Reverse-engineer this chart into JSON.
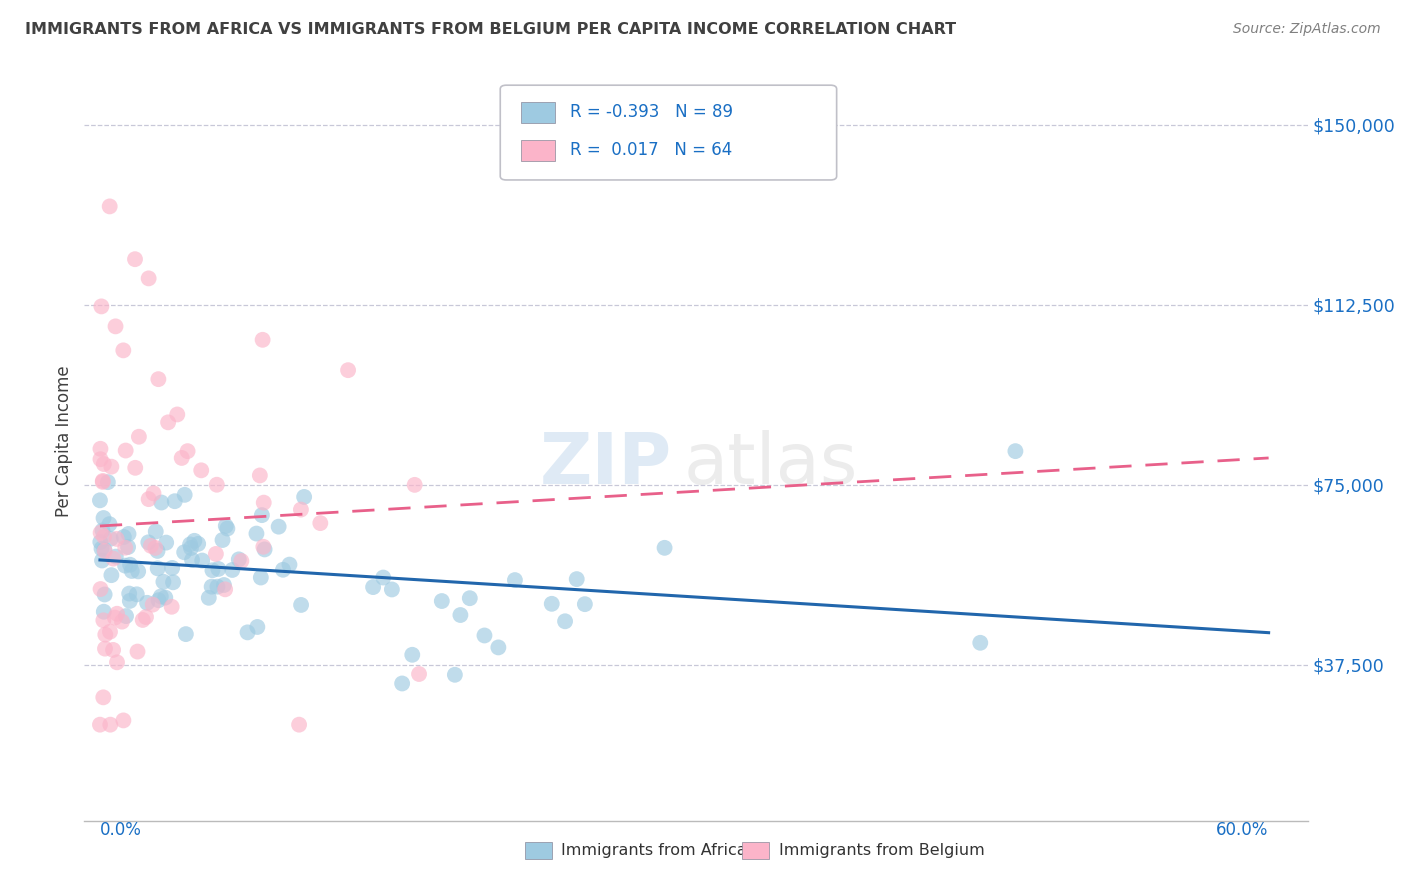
{
  "title": "IMMIGRANTS FROM AFRICA VS IMMIGRANTS FROM BELGIUM PER CAPITA INCOME CORRELATION CHART",
  "source": "Source: ZipAtlas.com",
  "ylabel": "Per Capita Income",
  "africa_R": -0.393,
  "africa_N": 89,
  "belgium_R": 0.017,
  "belgium_N": 64,
  "africa_color": "#9ecae1",
  "africa_line_color": "#2166ac",
  "belgium_color": "#fbb4c9",
  "belgium_line_color": "#e8608a",
  "legend_text_color": "#1a6fc4",
  "ytick_color": "#1a6fc4",
  "xtick_color": "#1a6fc4",
  "grid_color": "#c8c8d8",
  "title_color": "#404040",
  "source_color": "#808080",
  "ylabel_color": "#404040"
}
